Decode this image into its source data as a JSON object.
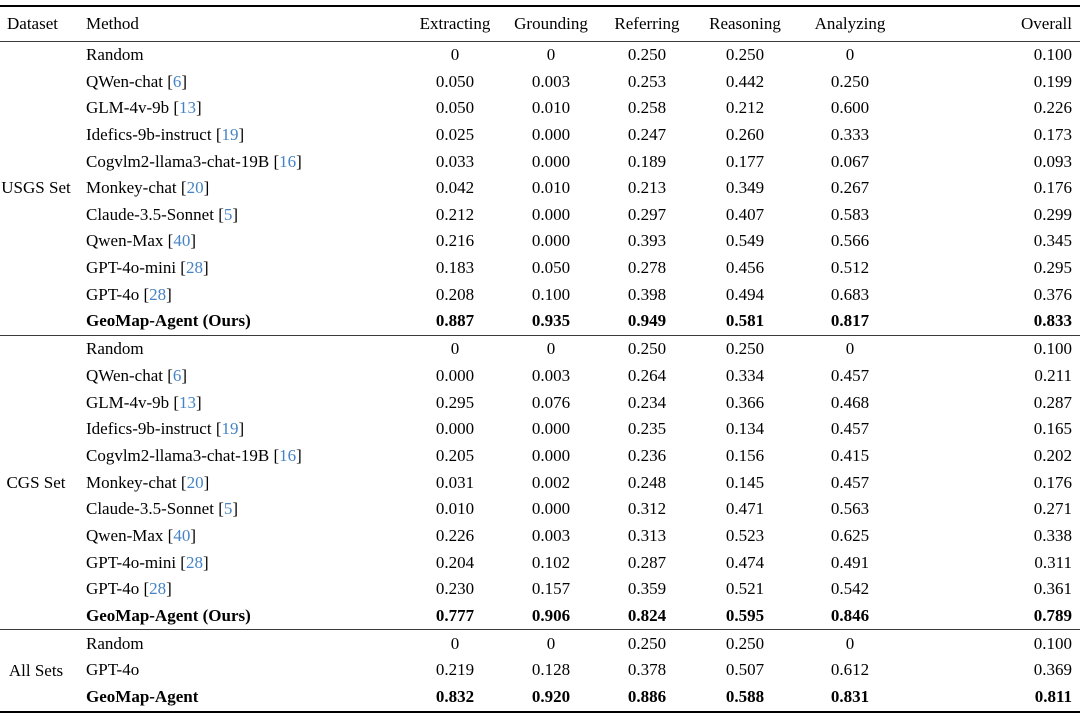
{
  "page": {
    "background": "#ffffff",
    "text_color": "#000000",
    "cite_color": "#4583c6"
  },
  "table": {
    "columns": [
      "Dataset",
      "Method",
      "Extracting",
      "Grounding",
      "Referring",
      "Reasoning",
      "Analyzing",
      "Overall"
    ],
    "groups": [
      {
        "dataset": "USGS Set",
        "rows": [
          {
            "method": "Random",
            "cite": "",
            "bold": false,
            "values": [
              "0",
              "0",
              "0.250",
              "0.250",
              "0",
              "0.100"
            ]
          },
          {
            "method": "QWen-chat",
            "cite": "6",
            "bold": false,
            "values": [
              "0.050",
              "0.003",
              "0.253",
              "0.442",
              "0.250",
              "0.199"
            ]
          },
          {
            "method": "GLM-4v-9b",
            "cite": "13",
            "bold": false,
            "values": [
              "0.050",
              "0.010",
              "0.258",
              "0.212",
              "0.600",
              "0.226"
            ]
          },
          {
            "method": "Idefics-9b-instruct",
            "cite": "19",
            "bold": false,
            "values": [
              "0.025",
              "0.000",
              "0.247",
              "0.260",
              "0.333",
              "0.173"
            ]
          },
          {
            "method": "Cogvlm2-llama3-chat-19B",
            "cite": "16",
            "bold": false,
            "values": [
              "0.033",
              "0.000",
              "0.189",
              "0.177",
              "0.067",
              "0.093"
            ]
          },
          {
            "method": "Monkey-chat",
            "cite": "20",
            "bold": false,
            "values": [
              "0.042",
              "0.010",
              "0.213",
              "0.349",
              "0.267",
              "0.176"
            ]
          },
          {
            "method": "Claude-3.5-Sonnet",
            "cite": "5",
            "bold": false,
            "values": [
              "0.212",
              "0.000",
              "0.297",
              "0.407",
              "0.583",
              "0.299"
            ]
          },
          {
            "method": "Qwen-Max",
            "cite": "40",
            "bold": false,
            "values": [
              "0.216",
              "0.000",
              "0.393",
              "0.549",
              "0.566",
              "0.345"
            ]
          },
          {
            "method": "GPT-4o-mini",
            "cite": "28",
            "bold": false,
            "values": [
              "0.183",
              "0.050",
              "0.278",
              "0.456",
              "0.512",
              "0.295"
            ]
          },
          {
            "method": "GPT-4o",
            "cite": "28",
            "bold": false,
            "values": [
              "0.208",
              "0.100",
              "0.398",
              "0.494",
              "0.683",
              "0.376"
            ]
          },
          {
            "method": "GeoMap-Agent (Ours)",
            "cite": "",
            "bold": true,
            "values": [
              "0.887",
              "0.935",
              "0.949",
              "0.581",
              "0.817",
              "0.833"
            ]
          }
        ]
      },
      {
        "dataset": "CGS Set",
        "rows": [
          {
            "method": "Random",
            "cite": "",
            "bold": false,
            "values": [
              "0",
              "0",
              "0.250",
              "0.250",
              "0",
              "0.100"
            ]
          },
          {
            "method": "QWen-chat",
            "cite": "6",
            "bold": false,
            "values": [
              "0.000",
              "0.003",
              "0.264",
              "0.334",
              "0.457",
              "0.211"
            ]
          },
          {
            "method": "GLM-4v-9b",
            "cite": "13",
            "bold": false,
            "values": [
              "0.295",
              "0.076",
              "0.234",
              "0.366",
              "0.468",
              "0.287"
            ]
          },
          {
            "method": "Idefics-9b-instruct",
            "cite": "19",
            "bold": false,
            "values": [
              "0.000",
              "0.000",
              "0.235",
              "0.134",
              "0.457",
              "0.165"
            ]
          },
          {
            "method": "Cogvlm2-llama3-chat-19B",
            "cite": "16",
            "bold": false,
            "values": [
              "0.205",
              "0.000",
              "0.236",
              "0.156",
              "0.415",
              "0.202"
            ]
          },
          {
            "method": "Monkey-chat",
            "cite": "20",
            "bold": false,
            "values": [
              "0.031",
              "0.002",
              "0.248",
              "0.145",
              "0.457",
              "0.176"
            ]
          },
          {
            "method": "Claude-3.5-Sonnet",
            "cite": "5",
            "bold": false,
            "values": [
              "0.010",
              "0.000",
              "0.312",
              "0.471",
              "0.563",
              "0.271"
            ]
          },
          {
            "method": "Qwen-Max",
            "cite": "40",
            "bold": false,
            "values": [
              "0.226",
              "0.003",
              "0.313",
              "0.523",
              "0.625",
              "0.338"
            ]
          },
          {
            "method": "GPT-4o-mini",
            "cite": "28",
            "bold": false,
            "values": [
              "0.204",
              "0.102",
              "0.287",
              "0.474",
              "0.491",
              "0.311"
            ]
          },
          {
            "method": "GPT-4o",
            "cite": "28",
            "bold": false,
            "values": [
              "0.230",
              "0.157",
              "0.359",
              "0.521",
              "0.542",
              "0.361"
            ]
          },
          {
            "method": "GeoMap-Agent (Ours)",
            "cite": "",
            "bold": true,
            "values": [
              "0.777",
              "0.906",
              "0.824",
              "0.595",
              "0.846",
              "0.789"
            ]
          }
        ]
      },
      {
        "dataset": "All Sets",
        "rows": [
          {
            "method": "Random",
            "cite": "",
            "bold": false,
            "values": [
              "0",
              "0",
              "0.250",
              "0.250",
              "0",
              "0.100"
            ]
          },
          {
            "method": "GPT-4o",
            "cite": "",
            "bold": false,
            "values": [
              "0.219",
              "0.128",
              "0.378",
              "0.507",
              "0.612",
              "0.369"
            ]
          },
          {
            "method": "GeoMap-Agent",
            "cite": "",
            "bold": true,
            "values": [
              "0.832",
              "0.920",
              "0.886",
              "0.588",
              "0.831",
              "0.811"
            ]
          }
        ]
      }
    ]
  }
}
